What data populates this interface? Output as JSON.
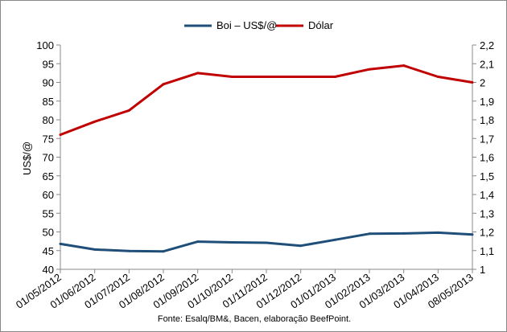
{
  "chart_data": {
    "type": "line",
    "categories": [
      "01/05/2012",
      "01/06/2012",
      "01/07/2012",
      "01/08/2012",
      "01/09/2012",
      "01/10/2012",
      "01/11/2012",
      "01/12/2012",
      "01/01/2013",
      "01/02/2013",
      "01/03/2013",
      "01/04/2013",
      "08/05/2013"
    ],
    "series": [
      {
        "name": "Boi – US$/@",
        "axis": "left",
        "color": "#1f4e79",
        "values": [
          46.8,
          45.3,
          44.9,
          44.8,
          47.4,
          47.2,
          47.1,
          46.3,
          47.9,
          49.5,
          49.6,
          49.8,
          49.3
        ]
      },
      {
        "name": "Dólar",
        "axis": "right",
        "color": "#c00000",
        "values": [
          1.72,
          1.79,
          1.85,
          1.99,
          2.05,
          2.03,
          2.03,
          2.03,
          2.03,
          2.07,
          2.09,
          2.03,
          2.0
        ]
      }
    ],
    "ylabel": "US$/@",
    "ylim": [
      40,
      100
    ],
    "yticks": [
      "40",
      "45",
      "50",
      "55",
      "60",
      "65",
      "70",
      "75",
      "80",
      "85",
      "90",
      "95",
      "100"
    ],
    "y2lim": [
      1,
      2.2
    ],
    "y2ticks": [
      "1",
      "1,1",
      "1,2",
      "1,3",
      "1,4",
      "1,5",
      "1,6",
      "1,7",
      "1,8",
      "1,9",
      "2",
      "2,1",
      "2,2"
    ],
    "legend_position": "top-center",
    "grid": false,
    "source_note": "Fonte: Esalq/BM&, Bacen, elaboração BeefPoint."
  }
}
